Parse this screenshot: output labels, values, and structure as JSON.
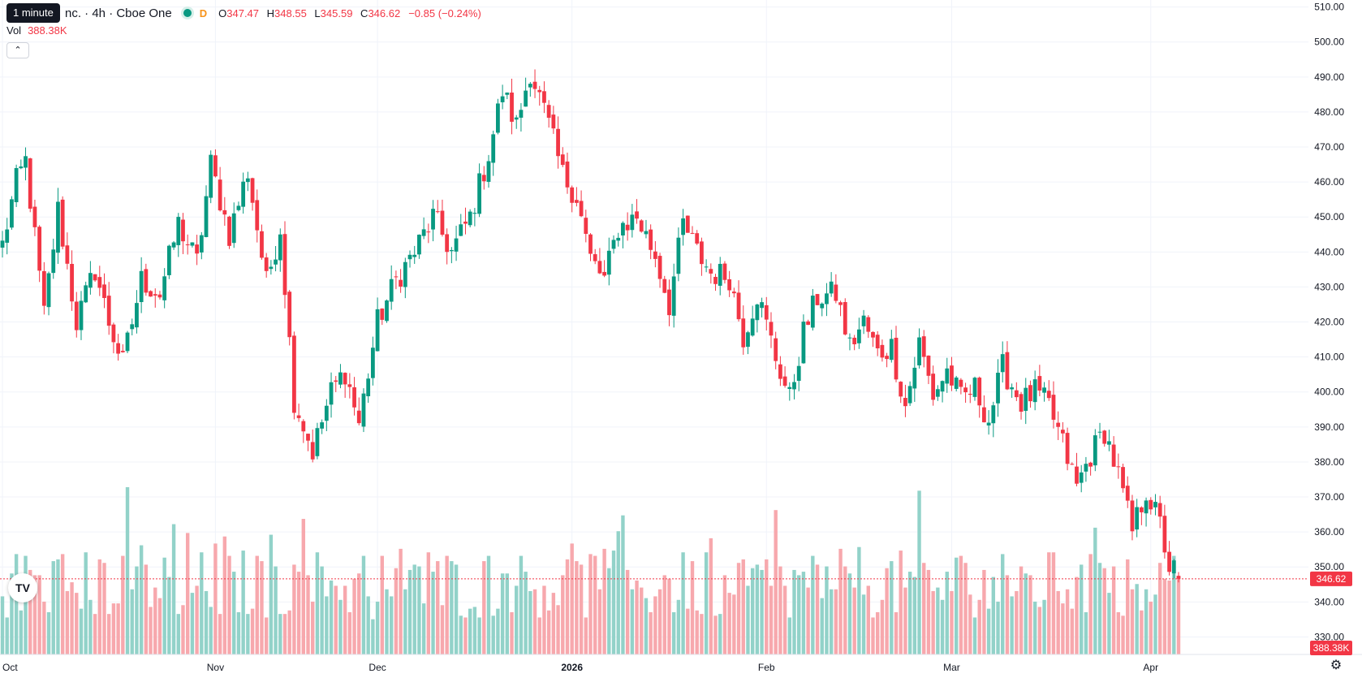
{
  "tooltip": "1 minute",
  "legend": {
    "symbol": "nc. · 4h · Cboe One",
    "d_label": "D",
    "open_key": "O",
    "open": "347.47",
    "high_key": "H",
    "high": "348.55",
    "low_key": "L",
    "low": "345.59",
    "close_key": "C",
    "close": "346.62",
    "change": "−0.85 (−0.24%)"
  },
  "volume": {
    "label": "Vol",
    "value": "388.38K"
  },
  "colors": {
    "up": "#089981",
    "down": "#f23645",
    "up_vol": "#92d2c9",
    "down_vol": "#f7a8ad",
    "grid": "#f0f3fa"
  },
  "icons": {
    "collapse": "chevron-up-icon",
    "logo": "tradingview-logo",
    "settings": "gear-icon"
  },
  "logo_text": "TV",
  "chart_data": {
    "type": "candlestick",
    "interval": "4h",
    "y_axis": {
      "side": "right",
      "min": 325,
      "max": 512,
      "ticks": [
        510,
        500,
        490,
        480,
        470,
        460,
        450,
        440,
        430,
        420,
        410,
        400,
        390,
        380,
        370,
        360,
        350,
        340,
        330
      ]
    },
    "x_axis": {
      "labels": [
        {
          "text": "Oct",
          "index": 0
        },
        {
          "text": "Nov",
          "index": 46
        },
        {
          "text": "Dec",
          "index": 81
        },
        {
          "text": "2026",
          "index": 123
        },
        {
          "text": "Feb",
          "index": 165
        },
        {
          "text": "Mar",
          "index": 205
        },
        {
          "text": "Apr",
          "index": 248
        }
      ]
    },
    "last_price": "346.62",
    "last_volume": "388.38K",
    "anchors": [
      [
        0,
        442
      ],
      [
        3,
        460
      ],
      [
        5,
        466
      ],
      [
        9,
        422
      ],
      [
        12,
        452
      ],
      [
        16,
        420
      ],
      [
        20,
        435
      ],
      [
        23,
        420
      ],
      [
        26,
        408
      ],
      [
        30,
        432
      ],
      [
        34,
        428
      ],
      [
        38,
        448
      ],
      [
        42,
        437
      ],
      [
        45,
        465
      ],
      [
        49,
        445
      ],
      [
        53,
        463
      ],
      [
        57,
        431
      ],
      [
        60,
        447
      ],
      [
        63,
        398
      ],
      [
        67,
        383
      ],
      [
        71,
        400
      ],
      [
        74,
        406
      ],
      [
        77,
        391
      ],
      [
        81,
        420
      ],
      [
        85,
        432
      ],
      [
        89,
        440
      ],
      [
        93,
        450
      ],
      [
        97,
        440
      ],
      [
        101,
        450
      ],
      [
        105,
        468
      ],
      [
        108,
        486
      ],
      [
        111,
        476
      ],
      [
        114,
        492
      ],
      [
        118,
        476
      ],
      [
        121,
        462
      ],
      [
        124,
        456
      ],
      [
        127,
        438
      ],
      [
        130,
        432
      ],
      [
        133,
        447
      ],
      [
        137,
        450
      ],
      [
        141,
        439
      ],
      [
        144,
        425
      ],
      [
        147,
        448
      ],
      [
        150,
        440
      ],
      [
        153,
        434
      ],
      [
        157,
        433
      ],
      [
        160,
        416
      ],
      [
        163,
        428
      ],
      [
        167,
        410
      ],
      [
        170,
        398
      ],
      [
        173,
        417
      ],
      [
        176,
        427
      ],
      [
        180,
        428
      ],
      [
        183,
        413
      ],
      [
        186,
        420
      ],
      [
        189,
        411
      ],
      [
        192,
        413
      ],
      [
        195,
        396
      ],
      [
        198,
        414
      ],
      [
        201,
        399
      ],
      [
        204,
        406
      ],
      [
        207,
        398
      ],
      [
        210,
        401
      ],
      [
        213,
        392
      ],
      [
        216,
        407
      ],
      [
        220,
        397
      ],
      [
        223,
        400
      ],
      [
        226,
        396
      ],
      [
        229,
        385
      ],
      [
        232,
        373
      ],
      [
        235,
        382
      ],
      [
        238,
        389
      ],
      [
        241,
        376
      ],
      [
        244,
        360
      ],
      [
        247,
        372
      ],
      [
        250,
        362
      ],
      [
        252,
        350
      ],
      [
        254,
        348
      ]
    ],
    "candles": [],
    "volumes": []
  }
}
